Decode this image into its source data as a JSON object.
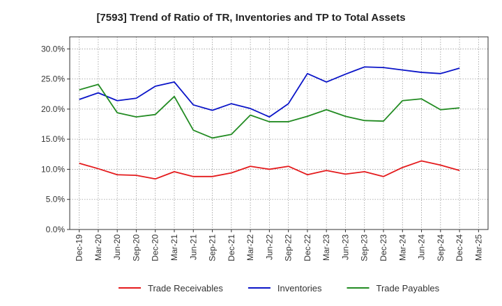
{
  "chart_data": {
    "type": "line",
    "title": "[7593]  Trend of Ratio of TR, Inventories and TP to Total Assets",
    "xlabel": "",
    "ylabel": "",
    "x": [
      "Dec-19",
      "Mar-20",
      "Jun-20",
      "Sep-20",
      "Dec-20",
      "Mar-21",
      "Jun-21",
      "Sep-21",
      "Dec-21",
      "Mar-22",
      "Jun-22",
      "Sep-22",
      "Dec-22",
      "Mar-23",
      "Jun-23",
      "Sep-23",
      "Dec-23",
      "Mar-24",
      "Jun-24",
      "Sep-24",
      "Dec-24",
      "Mar-25"
    ],
    "ylim": [
      0,
      32
    ],
    "yticks": [
      0,
      5,
      10,
      15,
      20,
      25,
      30
    ],
    "ytick_labels": [
      "0.0%",
      "5.0%",
      "10.0%",
      "15.0%",
      "20.0%",
      "25.0%",
      "30.0%"
    ],
    "grid": true,
    "legend_position": "bottom",
    "series": [
      {
        "name": "Trade Receivables",
        "color": "#e41a1c",
        "values": [
          11.0,
          10.1,
          9.1,
          9.0,
          8.4,
          9.6,
          8.8,
          8.8,
          9.4,
          10.5,
          10.0,
          10.5,
          9.1,
          9.8,
          9.2,
          9.6,
          8.8,
          10.3,
          11.4,
          10.7,
          9.8,
          null
        ]
      },
      {
        "name": "Inventories",
        "color": "#0a14c8",
        "values": [
          21.6,
          22.7,
          21.4,
          21.8,
          23.8,
          24.5,
          20.7,
          19.8,
          20.9,
          20.1,
          18.7,
          20.9,
          25.9,
          24.5,
          25.8,
          27.0,
          26.9,
          26.5,
          26.1,
          25.9,
          26.8,
          null
        ]
      },
      {
        "name": "Trade Payables",
        "color": "#228b22",
        "values": [
          23.2,
          24.1,
          19.4,
          18.7,
          19.1,
          22.1,
          16.5,
          15.2,
          15.8,
          19.0,
          17.9,
          17.9,
          18.8,
          19.9,
          18.8,
          18.1,
          18.0,
          21.4,
          21.7,
          19.9,
          20.2,
          null
        ]
      }
    ]
  }
}
